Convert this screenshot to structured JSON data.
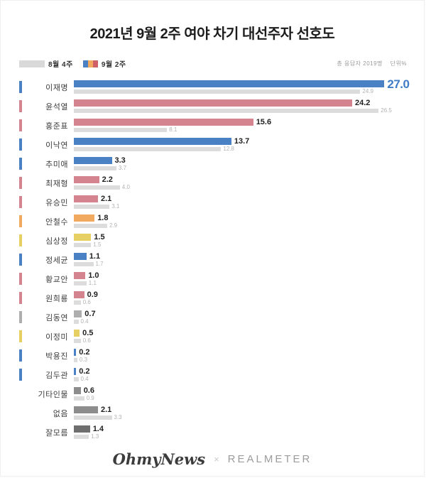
{
  "header": {
    "title": "2021년 9월 2주 여야 차기 대선주자 선호도"
  },
  "legend": {
    "prev_label": "8월 4주",
    "curr_label": "9월 2주"
  },
  "meta": {
    "respondents": "총 응답자 2019명",
    "unit": "단위%"
  },
  "chart_data": {
    "type": "bar",
    "orientation": "horizontal",
    "value_unit": "%",
    "xlim": [
      0,
      30
    ],
    "series_names": [
      "9월 2주",
      "8월 4주"
    ],
    "categories": [
      "이재명",
      "윤석열",
      "홍준표",
      "이낙연",
      "추미애",
      "최재형",
      "유승민",
      "안철수",
      "심상정",
      "정세균",
      "황교안",
      "원희룡",
      "김동연",
      "이정미",
      "박용진",
      "김두관",
      "기타인물",
      "없음",
      "잘모름"
    ],
    "palette": {
      "blue": "#4a81c4",
      "pink": "#d4848f",
      "orange": "#f0a95f",
      "yellow": "#e6cf63",
      "gray": "#aeaeae",
      "dark_gray": "#8d8d8d",
      "darker_gray": "#6e6e6e",
      "prev_bar": "#dcdcdc",
      "highlight_value": "#3f7cc6"
    },
    "rows": [
      {
        "label": "이재명",
        "curr": 27.0,
        "prev": 24.9,
        "color": "blue",
        "highlight": true
      },
      {
        "label": "윤석열",
        "curr": 24.2,
        "prev": 26.5,
        "color": "pink"
      },
      {
        "label": "홍준표",
        "curr": 15.6,
        "prev": 8.1,
        "color": "pink"
      },
      {
        "label": "이낙연",
        "curr": 13.7,
        "prev": 12.8,
        "color": "blue"
      },
      {
        "label": "추미애",
        "curr": 3.3,
        "prev": 3.7,
        "color": "blue"
      },
      {
        "label": "최재형",
        "curr": 2.2,
        "prev": 4.0,
        "color": "pink"
      },
      {
        "label": "유승민",
        "curr": 2.1,
        "prev": 3.1,
        "color": "pink"
      },
      {
        "label": "안철수",
        "curr": 1.8,
        "prev": 2.9,
        "color": "orange"
      },
      {
        "label": "심상정",
        "curr": 1.5,
        "prev": 1.5,
        "color": "yellow"
      },
      {
        "label": "정세균",
        "curr": 1.1,
        "prev": 1.7,
        "color": "blue"
      },
      {
        "label": "황교안",
        "curr": 1.0,
        "prev": 1.1,
        "color": "pink"
      },
      {
        "label": "원희룡",
        "curr": 0.9,
        "prev": 0.6,
        "color": "pink"
      },
      {
        "label": "김동연",
        "curr": 0.7,
        "prev": 0.4,
        "color": "gray"
      },
      {
        "label": "이정미",
        "curr": 0.5,
        "prev": 0.6,
        "color": "yellow"
      },
      {
        "label": "박용진",
        "curr": 0.2,
        "prev": 0.3,
        "color": "blue"
      },
      {
        "label": "김두관",
        "curr": 0.2,
        "prev": 0.4,
        "color": "blue"
      },
      {
        "label": "기타인물",
        "curr": 0.6,
        "prev": 0.9,
        "color": "dark_gray",
        "tick": false
      },
      {
        "label": "없음",
        "curr": 2.1,
        "prev": 3.3,
        "color": "dark_gray",
        "tick": false
      },
      {
        "label": "잘모름",
        "curr": 1.4,
        "prev": 1.3,
        "color": "darker_gray",
        "tick": false
      }
    ]
  },
  "footer": {
    "brand_left": "OhmyNews",
    "separator": "×",
    "brand_right": "REALMETER"
  }
}
